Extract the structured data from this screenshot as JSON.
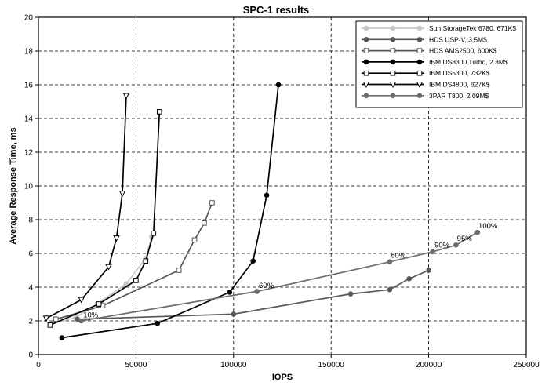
{
  "chart_data": {
    "type": "line",
    "title": "SPC-1 results",
    "xlabel": "IOPS",
    "ylabel": "Average Response Time, ms",
    "xlim": [
      0,
      250000
    ],
    "ylim": [
      0,
      20
    ],
    "xticks": [
      0,
      50000,
      100000,
      150000,
      200000,
      250000
    ],
    "xtick_labels": [
      "0",
      "50000",
      "100000",
      "150000",
      "200000",
      "250000"
    ],
    "yticks": [
      0,
      2,
      4,
      6,
      8,
      10,
      12,
      14,
      16,
      18,
      20
    ],
    "ytick_labels": [
      "0",
      "2",
      "4",
      "6",
      "8",
      "10",
      "12",
      "14",
      "16",
      "18",
      "20"
    ],
    "grid": true,
    "legend_position": "top-right",
    "series": [
      {
        "name": "Sun StorageTek 6780, 671K$",
        "color": "#c8c8c8",
        "marker": "circle-filled",
        "points": [
          [
            6000,
            1.8
          ],
          [
            19000,
            2.2
          ],
          [
            30000,
            3.0
          ],
          [
            45000,
            4.2
          ],
          [
            55000,
            5.7
          ],
          [
            58000,
            7.0
          ]
        ]
      },
      {
        "name": "HDS USP-V, 3.5M$",
        "color": "#585858",
        "marker": "circle-filled",
        "points": [
          [
            20000,
            2.1
          ],
          [
            100000,
            2.4
          ],
          [
            160000,
            3.6
          ],
          [
            180000,
            3.85
          ],
          [
            190000,
            4.5
          ],
          [
            200000,
            5.0
          ]
        ]
      },
      {
        "name": "HDS AMS2500, 600K$",
        "color": "#555555",
        "marker": "square-open",
        "points": [
          [
            9000,
            2.1
          ],
          [
            33000,
            2.9
          ],
          [
            72000,
            5.0
          ],
          [
            80000,
            6.8
          ],
          [
            85000,
            7.8
          ],
          [
            89000,
            9.0
          ]
        ]
      },
      {
        "name": "IBM DS8300 Turbo, 2.3M$",
        "color": "#000000",
        "marker": "circle-filled",
        "points": [
          [
            12000,
            1.0
          ],
          [
            61000,
            1.85
          ],
          [
            98000,
            3.7
          ],
          [
            110000,
            5.55
          ],
          [
            117000,
            9.45
          ],
          [
            123000,
            16.0
          ]
        ]
      },
      {
        "name": "IBM DS5300, 732K$",
        "color": "#000000",
        "marker": "square-open",
        "points": [
          [
            6000,
            1.75
          ],
          [
            31000,
            3.0
          ],
          [
            50000,
            4.4
          ],
          [
            55000,
            5.55
          ],
          [
            59000,
            7.2
          ],
          [
            62000,
            14.4
          ]
        ]
      },
      {
        "name": "IBM DS4800, 627K$",
        "color": "#000000",
        "marker": "triangle-down-open",
        "points": [
          [
            4000,
            2.15
          ],
          [
            22000,
            3.25
          ],
          [
            36000,
            5.2
          ],
          [
            40000,
            6.9
          ],
          [
            43000,
            9.55
          ],
          [
            45000,
            15.35
          ]
        ]
      },
      {
        "name": "3PAR T800, 2.09M$",
        "color": "#6c6c6c",
        "marker": "circle-filled",
        "points": [
          [
            22000,
            2.0
          ],
          [
            112000,
            3.75
          ],
          [
            180000,
            5.5
          ],
          [
            202000,
            6.1
          ],
          [
            214000,
            6.5
          ],
          [
            225000,
            7.25
          ]
        ]
      }
    ],
    "annotations": [
      {
        "text": "10%",
        "x": 23000,
        "y": 2.2
      },
      {
        "text": "60%",
        "x": 113000,
        "y": 3.95
      },
      {
        "text": "80%",
        "x": 180500,
        "y": 5.75
      },
      {
        "text": "90%",
        "x": 203000,
        "y": 6.35
      },
      {
        "text": "95%",
        "x": 214500,
        "y": 6.75
      },
      {
        "text": "100%",
        "x": 225500,
        "y": 7.5
      }
    ]
  }
}
